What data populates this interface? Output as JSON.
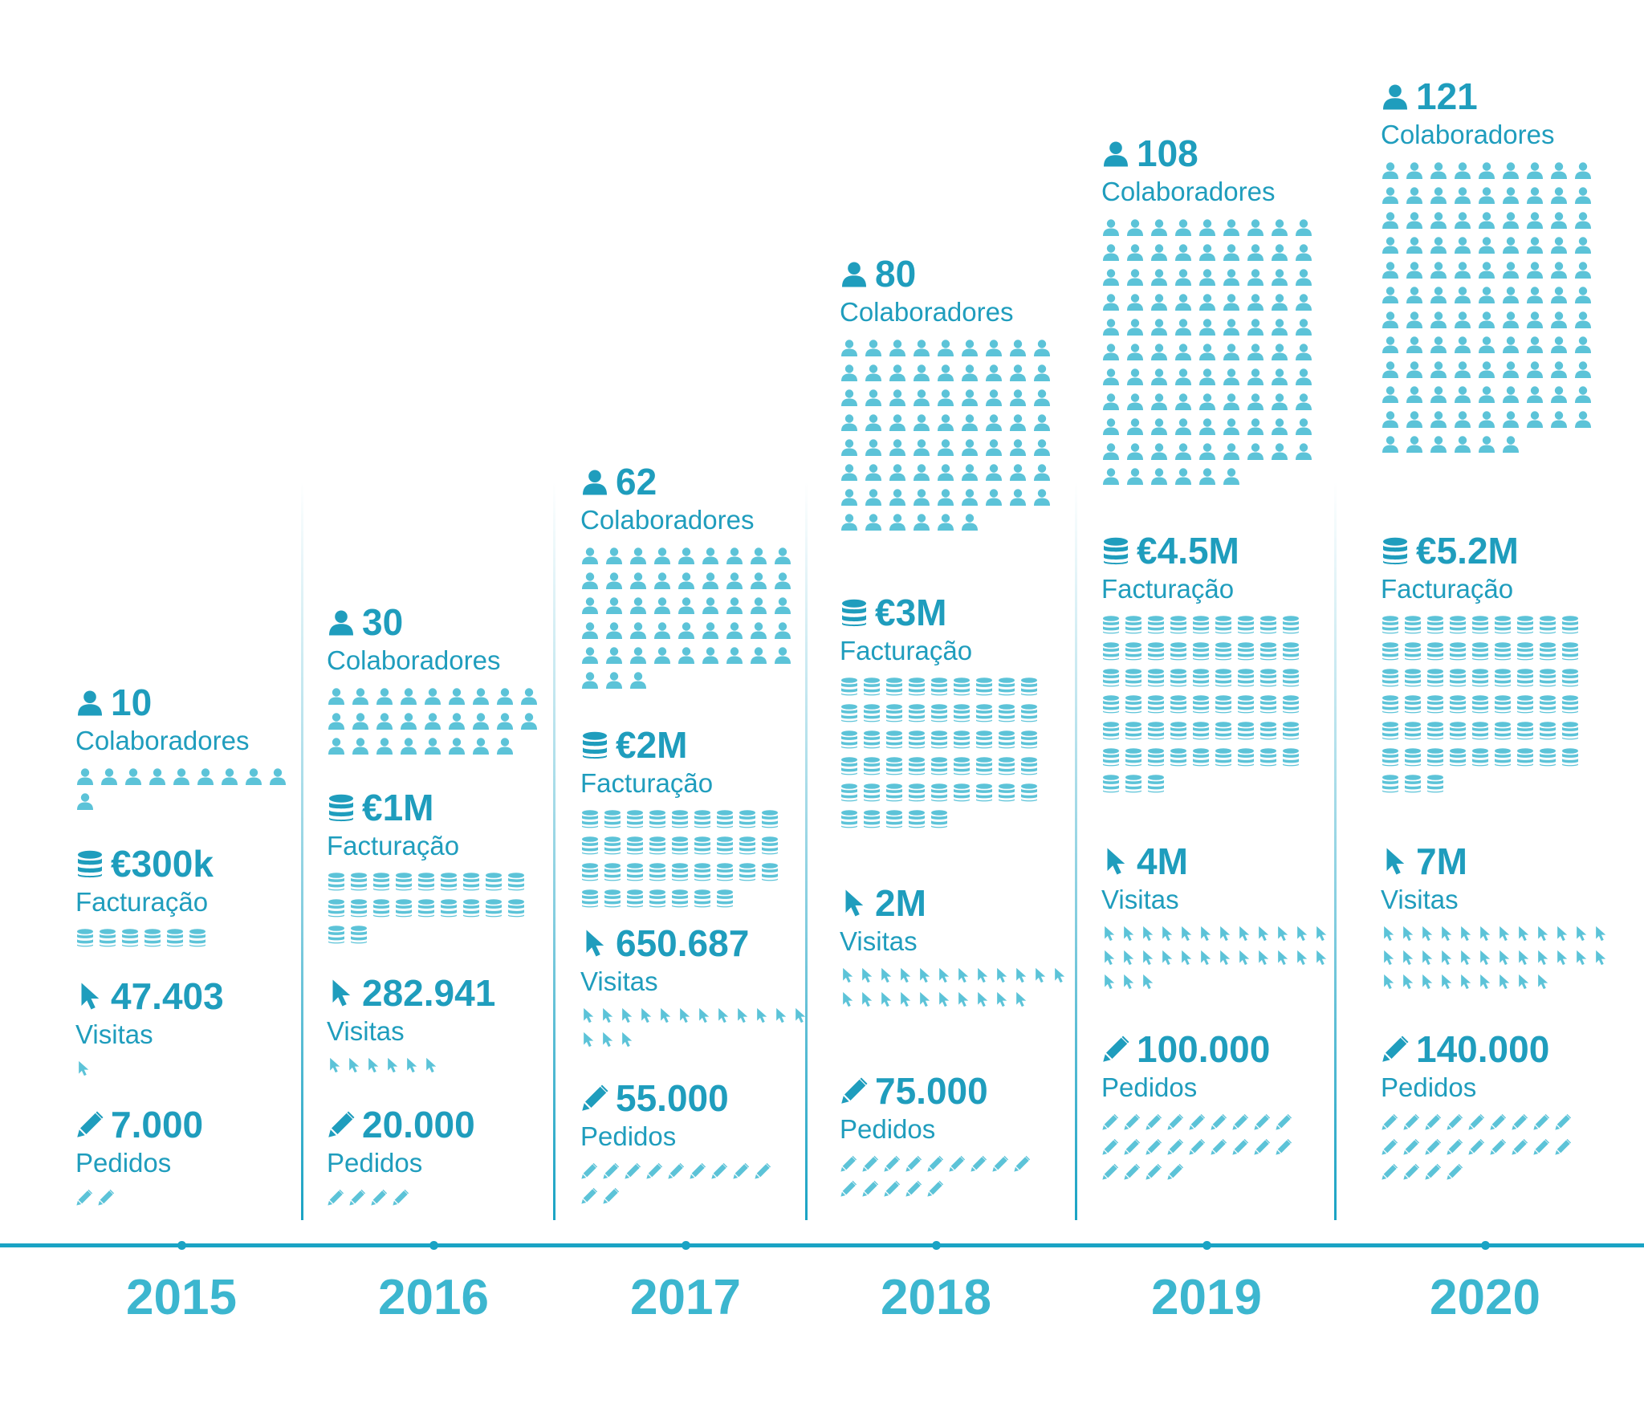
{
  "chart_data": {
    "type": "pictogram-timeline",
    "colors": {
      "accent": "#1f9dbd",
      "pictogram": "#5cc3d8",
      "axis": "#1aa3c4",
      "year_label": "#3cb6cf"
    },
    "years": [
      {
        "year": "2015",
        "colaboradores": {
          "value": "10",
          "label": "Colaboradores",
          "count": 10
        },
        "facturacao": {
          "value": "€300k",
          "label": "Facturação",
          "count": 6
        },
        "visitas": {
          "value": "47.403",
          "label": "Visitas",
          "count": 1
        },
        "pedidos": {
          "value": "7.000",
          "label": "Pedidos",
          "count": 2
        }
      },
      {
        "year": "2016",
        "colaboradores": {
          "value": "30",
          "label": "Colaboradores",
          "count": 26
        },
        "facturacao": {
          "value": "€1M",
          "label": "Facturação",
          "count": 20
        },
        "visitas": {
          "value": "282.941",
          "label": "Visitas",
          "count": 6
        },
        "pedidos": {
          "value": "20.000",
          "label": "Pedidos",
          "count": 4
        }
      },
      {
        "year": "2017",
        "colaboradores": {
          "value": "62",
          "label": "Colaboradores",
          "count": 48
        },
        "facturacao": {
          "value": "€2M",
          "label": "Facturação",
          "count": 34
        },
        "visitas": {
          "value": "650.687",
          "label": "Visitas",
          "count": 15
        },
        "pedidos": {
          "value": "55.000",
          "label": "Pedidos",
          "count": 11
        }
      },
      {
        "year": "2018",
        "colaboradores": {
          "value": "80",
          "label": "Colaboradores",
          "count": 69
        },
        "facturacao": {
          "value": "€3M",
          "label": "Facturação",
          "count": 50
        },
        "visitas": {
          "value": "2M",
          "label": "Visitas",
          "count": 22
        },
        "pedidos": {
          "value": "75.000",
          "label": "Pedidos",
          "count": 14
        }
      },
      {
        "year": "2019",
        "colaboradores": {
          "value": "108",
          "label": "Colaboradores",
          "count": 96
        },
        "facturacao": {
          "value": "€4.5M",
          "label": "Facturação",
          "count": 57
        },
        "visitas": {
          "value": "4M",
          "label": "Visitas",
          "count": 27
        },
        "pedidos": {
          "value": "100.000",
          "label": "Pedidos",
          "count": 22
        }
      },
      {
        "year": "2020",
        "colaboradores": {
          "value": "121",
          "label": "Colaboradores",
          "count": 105
        },
        "facturacao": {
          "value": "€5.2M",
          "label": "Facturação",
          "count": 57
        },
        "visitas": {
          "value": "7M",
          "label": "Visitas",
          "count": 33
        },
        "pedidos": {
          "value": "140.000",
          "label": "Pedidos",
          "count": 22
        }
      }
    ]
  }
}
